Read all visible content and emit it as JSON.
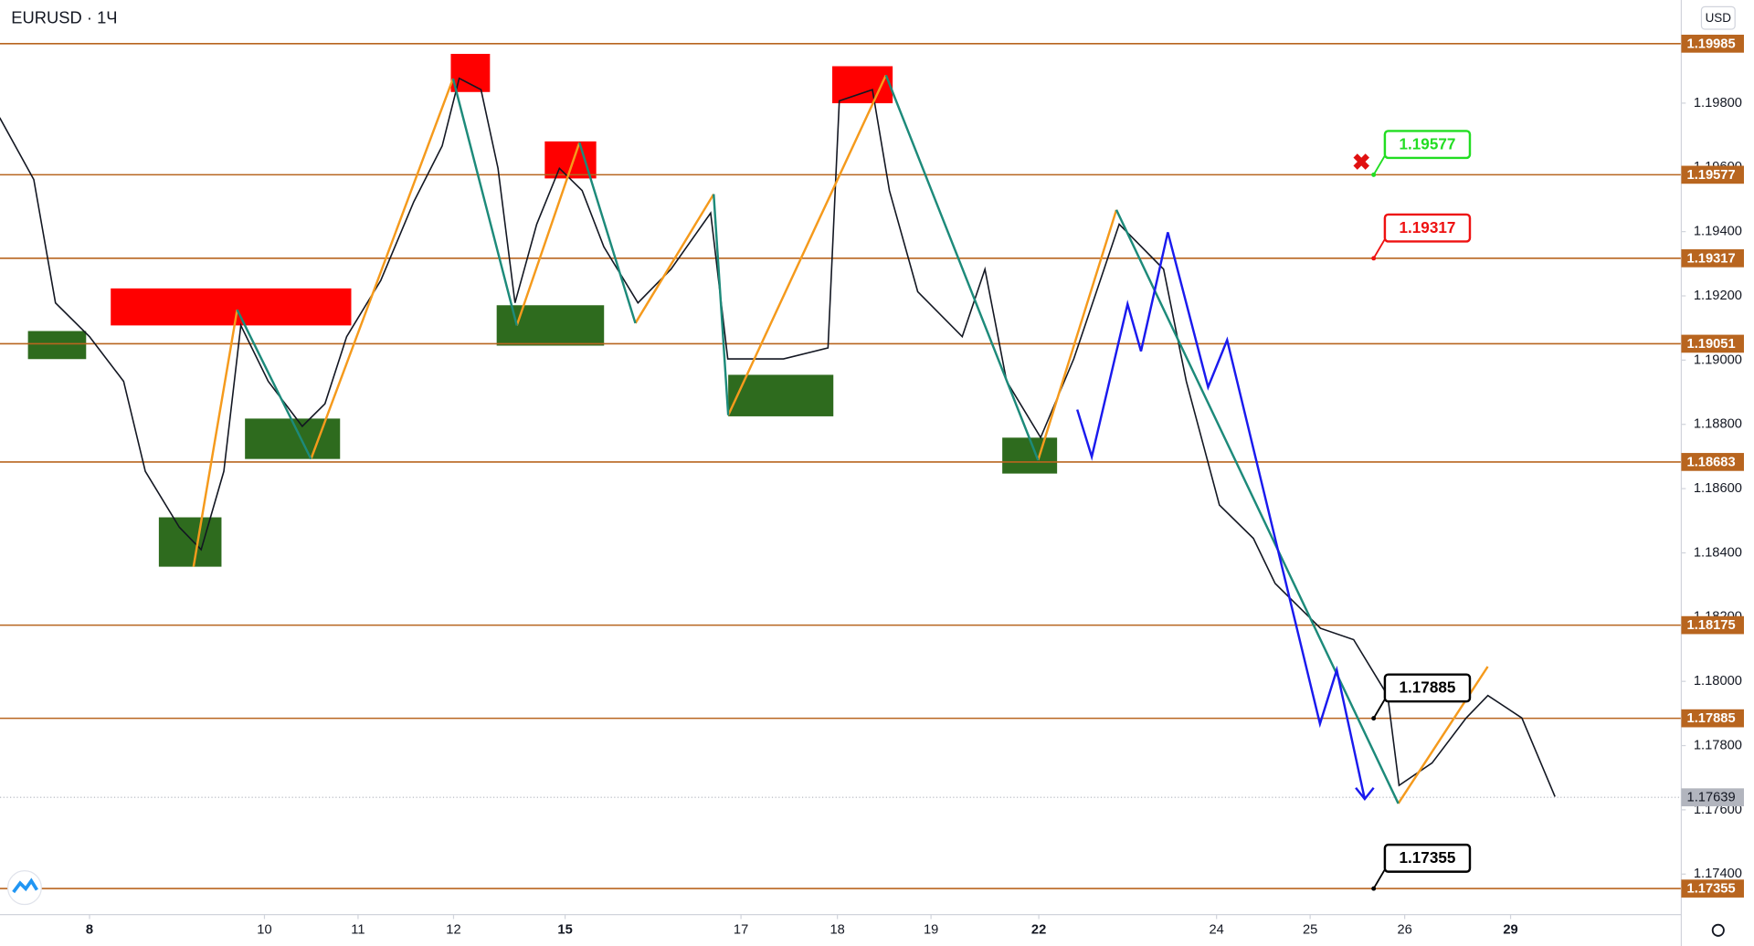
{
  "chart_data": {
    "type": "line",
    "title": "EURUSD · 1Ч",
    "currency": "USD",
    "color": "#131722",
    "x": [
      -0.95,
      -0.59,
      -0.36,
      0,
      0.36,
      0.59,
      0.95,
      1.18,
      1.42,
      1.6,
      1.89,
      2.25,
      2.49,
      2.72,
      3.08,
      3.43,
      3.73,
      3.91,
      4.14,
      4.32,
      4.5,
      4.73,
      4.97,
      5.21,
      5.44,
      5.8,
      6.15,
      6.57,
      6.75,
      7.34,
      7.81,
      7.93,
      8.28,
      8.46,
      8.76,
      9.23,
      9.47,
      9.7,
      10.06,
      10.41,
      10.65,
      10.89,
      11.36,
      11.6,
      11.95,
      12.31,
      12.54,
      13.02,
      13.37,
      13.73,
      13.85,
      14.2,
      14.56,
      14.79,
      15.15,
      15.5
    ],
    "values": [
      1.19755,
      1.19562,
      1.19178,
      1.19073,
      1.18934,
      1.18654,
      1.1848,
      1.1841,
      1.18654,
      1.19108,
      1.18934,
      1.18794,
      1.18864,
      1.19073,
      1.19248,
      1.19493,
      1.19667,
      1.19877,
      1.19842,
      1.19597,
      1.19178,
      1.19423,
      1.19597,
      1.19528,
      1.19353,
      1.19178,
      1.19283,
      1.19458,
      1.19004,
      1.19004,
      1.19038,
      1.19807,
      1.19842,
      1.19528,
      1.19213,
      1.19073,
      1.19283,
      1.18934,
      1.18759,
      1.19004,
      1.19213,
      1.19423,
      1.19283,
      1.18934,
      1.18549,
      1.18445,
      1.18305,
      1.18165,
      1.1813,
      1.17956,
      1.17676,
      1.17746,
      1.17886,
      1.17956,
      1.17886,
      1.17641
    ],
    "xlim": [
      -0.947,
      16.8
    ],
    "xticks": [
      {
        "value": 0,
        "label": "8"
      },
      {
        "value": 1.85,
        "label": "10"
      },
      {
        "value": 2.84,
        "label": "11"
      },
      {
        "value": 3.85,
        "label": "12"
      },
      {
        "value": 5.03,
        "label": "15"
      },
      {
        "value": 6.89,
        "label": "17"
      },
      {
        "value": 7.91,
        "label": "18"
      },
      {
        "value": 8.9,
        "label": "19"
      },
      {
        "value": 10.04,
        "label": "22"
      },
      {
        "value": 11.92,
        "label": "24"
      },
      {
        "value": 12.91,
        "label": "25"
      },
      {
        "value": 13.91,
        "label": "26"
      },
      {
        "value": 15.03,
        "label": "29"
      }
    ],
    "ylim": [
      1.17274,
      1.20121
    ],
    "yticks": [
      {
        "value": 1.174,
        "label": "1.17400"
      },
      {
        "value": 1.176,
        "label": "1.17600"
      },
      {
        "value": 1.178,
        "label": "1.17800"
      },
      {
        "value": 1.18,
        "label": "1.18000"
      },
      {
        "value": 1.182,
        "label": "1.18200"
      },
      {
        "value": 1.184,
        "label": "1.18400"
      },
      {
        "value": 1.186,
        "label": "1.18600"
      },
      {
        "value": 1.188,
        "label": "1.18800"
      },
      {
        "value": 1.19,
        "label": "1.19000"
      },
      {
        "value": 1.192,
        "label": "1.19200"
      },
      {
        "value": 1.194,
        "label": "1.19400"
      },
      {
        "value": 1.196,
        "label": "1.19600"
      },
      {
        "value": 1.198,
        "label": "1.19800"
      }
    ],
    "levels": [
      1.19985,
      1.19577,
      1.19317,
      1.19051,
      1.18683,
      1.18175,
      1.17885,
      1.17355
    ],
    "level_color": "#b8651f",
    "last_price": 1.17639,
    "callouts": [
      {
        "value": 1.19577,
        "color": "#22dd22"
      },
      {
        "value": 1.19317,
        "color": "#ee1111"
      },
      {
        "value": 1.17885,
        "color": "#000000"
      },
      {
        "value": 1.17355,
        "color": "#000000"
      }
    ]
  }
}
